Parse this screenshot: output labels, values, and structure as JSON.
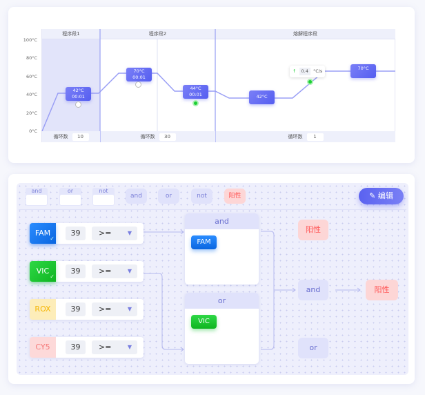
{
  "program": {
    "segments": [
      {
        "title": "程序段1",
        "cycles_label": "循环数",
        "cycles": "10"
      },
      {
        "title": "程序段2",
        "cycles_label": "循环数",
        "cycles": "30"
      },
      {
        "title": "熔解程序段",
        "cycles_label": "循环数",
        "cycles": "1"
      }
    ],
    "y_ticks": [
      "100°C",
      "80°C",
      "60°C",
      "40°C",
      "20°C",
      "0°C"
    ],
    "steps": [
      {
        "temp": "42°C",
        "time": "00:01"
      },
      {
        "temp": "70°C",
        "time": "00:01"
      },
      {
        "temp": "44°C",
        "time": "00:01"
      },
      {
        "temp": "42°C"
      },
      {
        "temp": "70°C"
      }
    ],
    "rate": {
      "value": "0.4",
      "unit": "°C/s"
    },
    "line_color": "#9a9ff5"
  },
  "logic": {
    "toolbar": {
      "drag_items": [
        "and",
        "or",
        "not"
      ],
      "pills": [
        "and",
        "or",
        "not",
        "阳性"
      ],
      "edit_label": "编辑"
    },
    "channels": [
      {
        "name": "FAM",
        "ct": "39",
        "op": ">=",
        "color": "#1a7ff5",
        "checked": true
      },
      {
        "name": "VIC",
        "ct": "39",
        "op": ">=",
        "color": "#18c22c",
        "checked": true
      },
      {
        "name": "ROX",
        "ct": "39",
        "op": ">=",
        "color": "#f5b400",
        "checked": false
      },
      {
        "name": "CY5",
        "ct": "39",
        "op": ">=",
        "color": "#f56b6b",
        "checked": false
      }
    ],
    "groups": [
      {
        "op": "and",
        "members": [
          "FAM"
        ]
      },
      {
        "op": "or",
        "members": [
          "VIC"
        ]
      }
    ],
    "outputs": {
      "positive_top": "阳性",
      "and": "and",
      "or": "or",
      "result": "阳性"
    }
  }
}
